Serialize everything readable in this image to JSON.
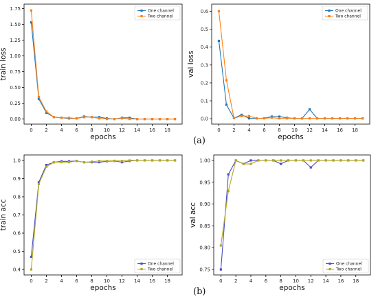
{
  "captions": {
    "a": "(a)",
    "b": "(b)"
  },
  "chart_data": [
    {
      "id": "train-loss",
      "type": "line",
      "xlabel": "epochs",
      "ylabel": "train loss",
      "x": [
        0,
        1,
        2,
        3,
        4,
        5,
        6,
        7,
        8,
        9,
        10,
        11,
        12,
        13,
        14,
        15,
        16,
        17,
        18,
        19
      ],
      "xticks": [
        0,
        2,
        4,
        6,
        8,
        10,
        12,
        14,
        16,
        18
      ],
      "ylim": [
        -0.08,
        1.82
      ],
      "yticks": [
        0.0,
        0.25,
        0.5,
        0.75,
        1.0,
        1.25,
        1.5,
        1.75
      ],
      "ytick_labels": [
        "0.00",
        "0.25",
        "0.50",
        "0.75",
        "1.00",
        "1.25",
        "1.50",
        "1.75"
      ],
      "legend": "top-right",
      "series": [
        {
          "name": "One channel",
          "color": "#1f77b4",
          "values": [
            1.53,
            0.32,
            0.1,
            0.03,
            0.02,
            0.01,
            0.01,
            0.04,
            0.03,
            0.03,
            0.01,
            0.0,
            0.02,
            0.02,
            0.0,
            0.0,
            0.0,
            0.0,
            0.0,
            0.0
          ]
        },
        {
          "name": "Two channel",
          "color": "#ff7f0e",
          "values": [
            1.72,
            0.35,
            0.12,
            0.03,
            0.02,
            0.02,
            0.01,
            0.03,
            0.03,
            0.01,
            0.0,
            0.0,
            0.01,
            0.0,
            0.0,
            0.0,
            0.0,
            0.0,
            0.0,
            0.0
          ]
        }
      ]
    },
    {
      "id": "val-loss",
      "type": "line",
      "xlabel": "epochs",
      "ylabel": "val loss",
      "x": [
        0,
        1,
        2,
        3,
        4,
        5,
        6,
        7,
        8,
        9,
        10,
        11,
        12,
        13,
        14,
        15,
        16,
        17,
        18,
        19
      ],
      "xticks": [
        0,
        2,
        4,
        6,
        8,
        10,
        12,
        14,
        16,
        18
      ],
      "ylim": [
        -0.03,
        0.64
      ],
      "yticks": [
        0.0,
        0.1,
        0.2,
        0.3,
        0.4,
        0.5,
        0.6
      ],
      "ytick_labels": [
        "0.0",
        "0.1",
        "0.2",
        "0.3",
        "0.4",
        "0.5",
        "0.6"
      ],
      "legend": "top-right",
      "series": [
        {
          "name": "One channel",
          "color": "#1f77b4",
          "values": [
            0.435,
            0.078,
            0.003,
            0.022,
            0.002,
            0.002,
            0.003,
            0.012,
            0.012,
            0.005,
            0.002,
            0.002,
            0.052,
            0.002,
            0.002,
            0.002,
            0.002,
            0.002,
            0.002,
            0.002
          ]
        },
        {
          "name": "Two channel",
          "color": "#ff7f0e",
          "values": [
            0.6,
            0.215,
            0.003,
            0.015,
            0.015,
            0.002,
            0.002,
            0.006,
            0.002,
            0.002,
            0.002,
            0.002,
            0.002,
            0.002,
            0.002,
            0.002,
            0.002,
            0.002,
            0.002,
            0.002
          ]
        }
      ]
    },
    {
      "id": "train-acc",
      "type": "line",
      "xlabel": "epochs",
      "ylabel": "train acc",
      "x": [
        0,
        1,
        2,
        3,
        4,
        5,
        6,
        7,
        8,
        9,
        10,
        11,
        12,
        13,
        14,
        15,
        16,
        17,
        18,
        19
      ],
      "xticks": [
        0,
        2,
        4,
        6,
        8,
        10,
        12,
        14,
        16,
        18
      ],
      "ylim": [
        0.37,
        1.03
      ],
      "yticks": [
        0.4,
        0.5,
        0.6,
        0.7,
        0.8,
        0.9,
        1.0
      ],
      "ytick_labels": [
        "0.4",
        "0.5",
        "0.6",
        "0.7",
        "0.8",
        "0.9",
        "1.0"
      ],
      "legend": "bottom-right",
      "series": [
        {
          "name": "One channel",
          "color": "#4c4cbf",
          "values": [
            0.47,
            0.88,
            0.975,
            0.99,
            0.995,
            0.995,
            0.997,
            0.99,
            0.99,
            0.99,
            0.995,
            0.997,
            0.99,
            0.997,
            1.0,
            1.0,
            1.0,
            1.0,
            1.0,
            1.0
          ]
        },
        {
          "name": "Two channel",
          "color": "#b5a81c",
          "values": [
            0.4,
            0.87,
            0.965,
            0.99,
            0.99,
            0.99,
            0.997,
            0.99,
            0.993,
            0.997,
            0.997,
            0.998,
            0.997,
            1.0,
            1.0,
            1.0,
            1.0,
            1.0,
            1.0,
            1.0
          ]
        }
      ]
    },
    {
      "id": "val-acc",
      "type": "line",
      "xlabel": "epochs",
      "ylabel": "val acc",
      "x": [
        0,
        1,
        2,
        3,
        4,
        5,
        6,
        7,
        8,
        9,
        10,
        11,
        12,
        13,
        14,
        15,
        16,
        17,
        18,
        19
      ],
      "xticks": [
        0,
        2,
        4,
        6,
        8,
        10,
        12,
        14,
        16,
        18
      ],
      "ylim": [
        0.7375,
        1.0125
      ],
      "yticks": [
        0.75,
        0.8,
        0.85,
        0.9,
        0.95,
        1.0
      ],
      "ytick_labels": [
        "0.75",
        "0.80",
        "0.85",
        "0.90",
        "0.95",
        "1.00"
      ],
      "legend": "bottom-right",
      "series": [
        {
          "name": "One channel",
          "color": "#4c4cbf",
          "values": [
            0.75,
            0.968,
            1.0,
            0.992,
            1.0,
            1.0,
            1.0,
            1.0,
            0.992,
            1.0,
            1.0,
            1.0,
            0.984,
            1.0,
            1.0,
            1.0,
            1.0,
            1.0,
            1.0,
            1.0
          ]
        },
        {
          "name": "Two channel",
          "color": "#b5a81c",
          "values": [
            0.805,
            0.93,
            1.0,
            0.992,
            0.992,
            1.0,
            1.0,
            1.0,
            1.0,
            1.0,
            1.0,
            1.0,
            1.0,
            1.0,
            1.0,
            1.0,
            1.0,
            1.0,
            1.0,
            1.0
          ]
        }
      ]
    }
  ]
}
